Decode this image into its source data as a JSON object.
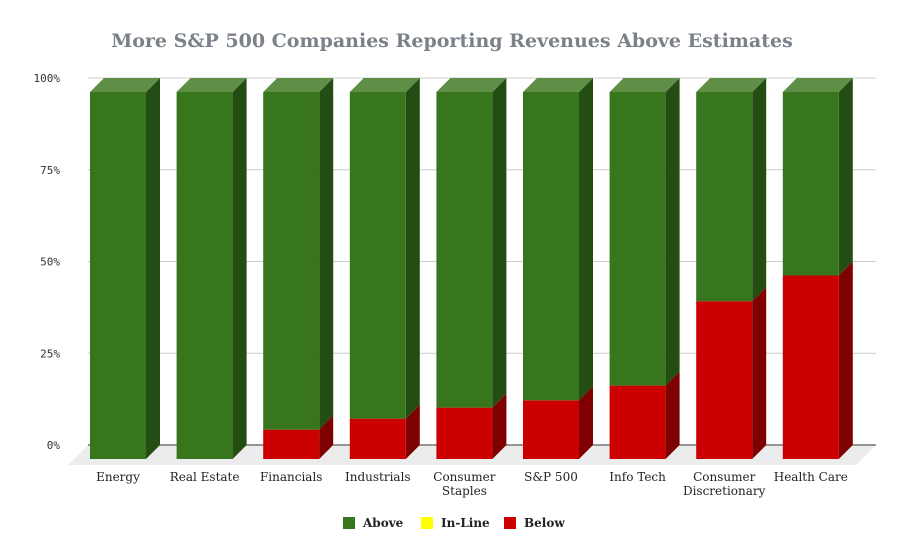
{
  "chart_data": {
    "type": "bar",
    "stacked": true,
    "percent_stacked": true,
    "three_d": true,
    "title": "More S&P 500 Companies Reporting Revenues Above Estimates",
    "xlabel": "",
    "ylabel": "",
    "ylim": [
      0,
      100
    ],
    "y_ticks": [
      "0%",
      "25%",
      "50%",
      "75%",
      "100%"
    ],
    "y_tick_values": [
      0,
      25,
      50,
      75,
      100
    ],
    "grid": true,
    "legend_position": "bottom",
    "categories": [
      [
        "Energy"
      ],
      [
        "Real Estate"
      ],
      [
        "Financials"
      ],
      [
        "Industrials"
      ],
      [
        "Consumer",
        "Staples"
      ],
      [
        "S&P 500"
      ],
      [
        "Info Tech"
      ],
      [
        "Consumer",
        "Discretionary"
      ],
      [
        "Health Care"
      ]
    ],
    "series": [
      {
        "name": "Below",
        "color": "#cc0000",
        "side_color": "#7f0000",
        "top_color": "#e04040",
        "values": [
          0,
          0,
          8,
          11,
          14,
          16,
          20,
          43,
          50
        ]
      },
      {
        "name": "In-Line",
        "color": "#ffff00",
        "side_color": "#b0b000",
        "top_color": "#ffff66",
        "values": [
          0,
          0,
          0,
          0,
          0,
          0,
          0,
          0,
          0
        ]
      },
      {
        "name": "Above",
        "color": "#38761d",
        "side_color": "#234d13",
        "top_color": "#5f8f47",
        "values": [
          100,
          100,
          92,
          89,
          86,
          84,
          80,
          57,
          50
        ]
      }
    ],
    "legend": [
      {
        "name": "Above",
        "color": "#38761d"
      },
      {
        "name": "In-Line",
        "color": "#ffff00"
      },
      {
        "name": "Below",
        "color": "#cc0000"
      }
    ]
  }
}
